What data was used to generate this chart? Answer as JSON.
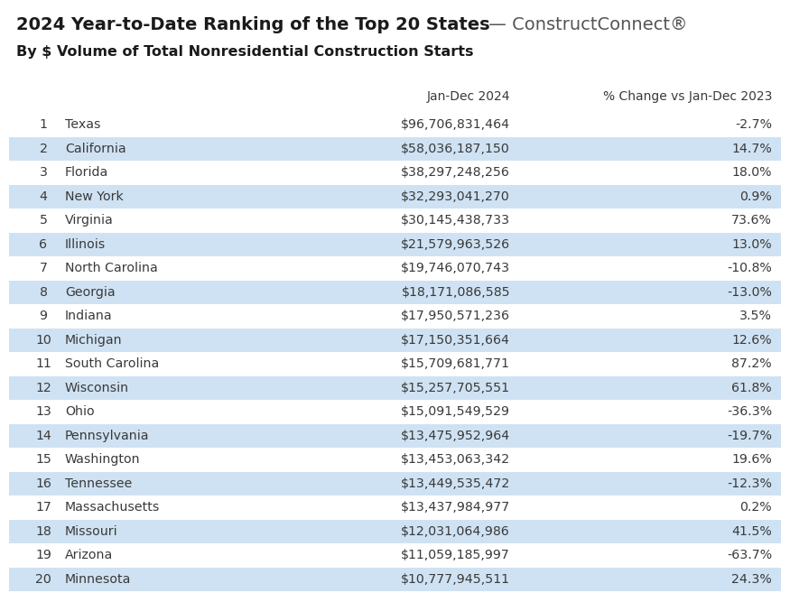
{
  "title_bold": "2024 Year-to-Date Ranking of the Top 20 States",
  "title_light": " — ConstructConnect®",
  "subtitle": "By $ Volume of Total Nonresidential Construction Starts",
  "col_header_1": "Jan-Dec 2024",
  "col_header_2": "% Change vs Jan-Dec 2023",
  "ranks": [
    1,
    2,
    3,
    4,
    5,
    6,
    7,
    8,
    9,
    10,
    11,
    12,
    13,
    14,
    15,
    16,
    17,
    18,
    19,
    20
  ],
  "states": [
    "Texas",
    "California",
    "Florida",
    "New York",
    "Virginia",
    "Illinois",
    "North Carolina",
    "Georgia",
    "Indiana",
    "Michigan",
    "South Carolina",
    "Wisconsin",
    "Ohio",
    "Pennsylvania",
    "Washington",
    "Tennessee",
    "Massachusetts",
    "Missouri",
    "Arizona",
    "Minnesota"
  ],
  "values": [
    "$96,706,831,464",
    "$58,036,187,150",
    "$38,297,248,256",
    "$32,293,041,270",
    "$30,145,438,733",
    "$21,579,963,526",
    "$19,746,070,743",
    "$18,171,086,585",
    "$17,950,571,236",
    "$17,150,351,664",
    "$15,709,681,771",
    "$15,257,705,551",
    "$15,091,549,529",
    "$13,475,952,964",
    "$13,453,063,342",
    "$13,449,535,472",
    "$13,437,984,977",
    "$12,031,064,986",
    "$11,059,185,997",
    "$10,777,945,511"
  ],
  "changes": [
    "-2.7%",
    "14.7%",
    "18.0%",
    "0.9%",
    "73.6%",
    "13.0%",
    "-10.8%",
    "-13.0%",
    "3.5%",
    "12.6%",
    "87.2%",
    "61.8%",
    "-36.3%",
    "-19.7%",
    "19.6%",
    "-12.3%",
    "0.2%",
    "41.5%",
    "-63.7%",
    "24.3%"
  ],
  "row_bg_shaded": "#cfe2f3",
  "row_bg_white": "#ffffff",
  "text_color": "#3a3a3a",
  "header_color": "#3a3a3a",
  "title_color": "#1a1a1a",
  "background_color": "#ffffff"
}
